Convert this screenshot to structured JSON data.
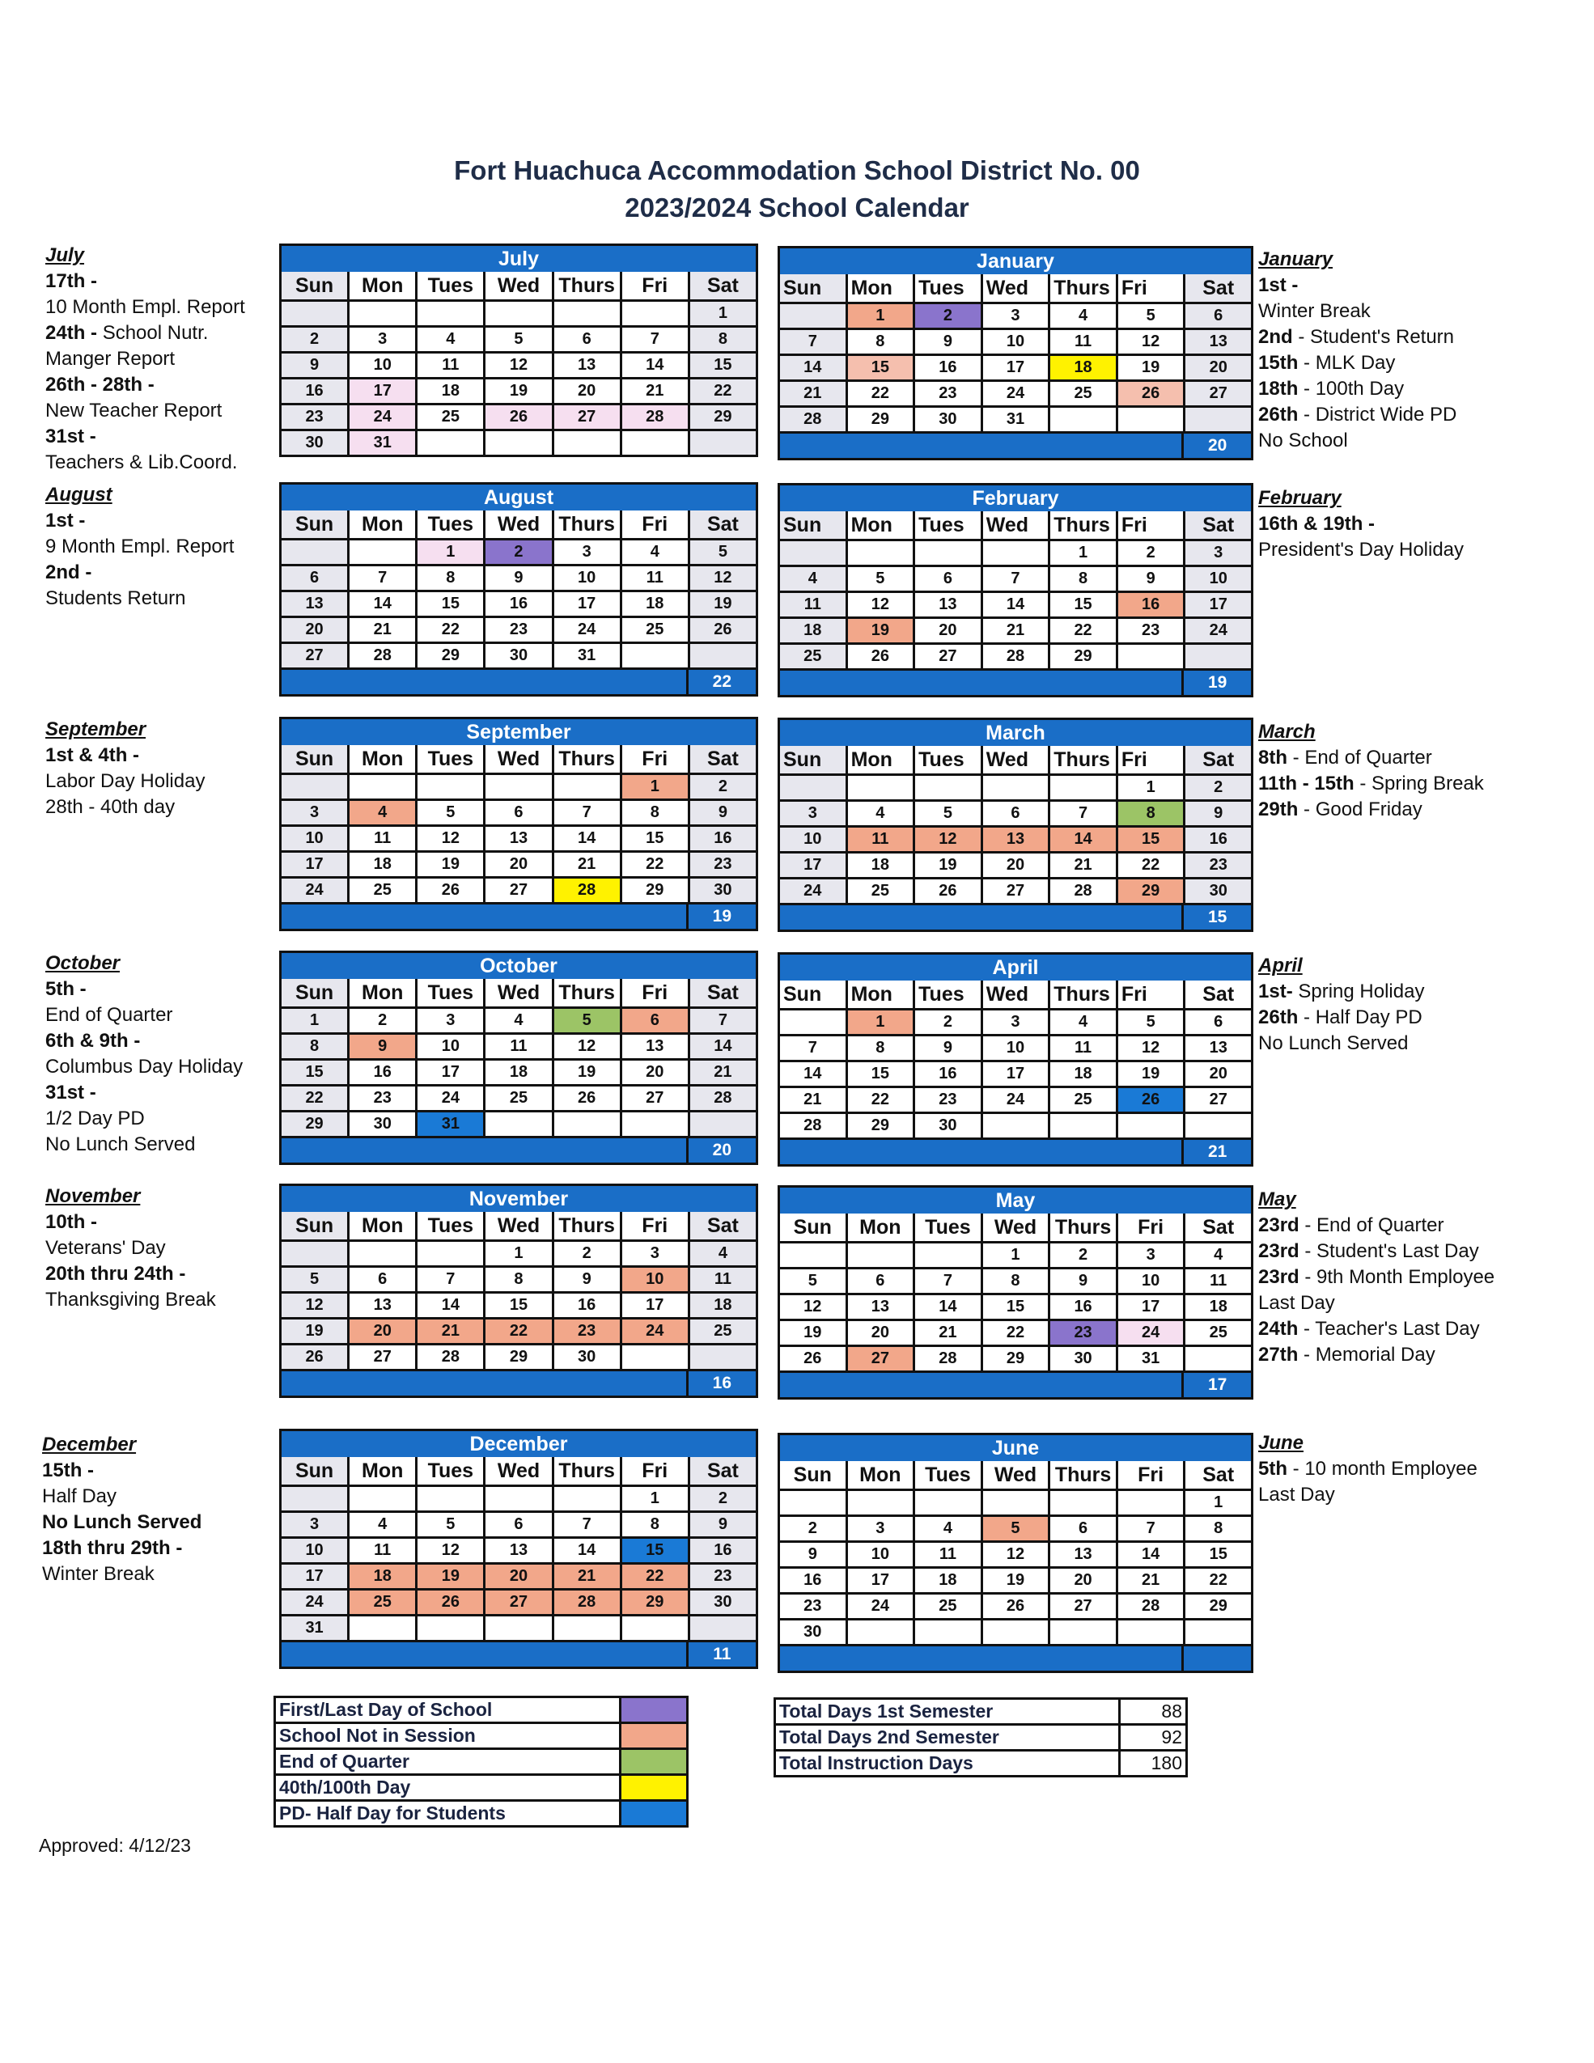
{
  "header": {
    "line1": "Fort Huachuca Accommodation School District No. 00",
    "line2": "2023/2024 School Calendar"
  },
  "weekdays": [
    "Sun",
    "Mon",
    "Tues",
    "Wed",
    "Thurs",
    "Fri",
    "Sat"
  ],
  "colors": {
    "first": "#8a74cc",
    "off": "#f2a78a",
    "light": "#f6dff0",
    "eoq": "#9cc466",
    "day": "#fff200",
    "pd": "#1a7ad6",
    "header_blue": "#1a6ec7",
    "weekend": "#e7e7ee"
  },
  "months": [
    {
      "name": "July",
      "first_weekday": 6,
      "days": 31,
      "weekend_shaded": true,
      "footer": null,
      "highlights": {
        "17": "light",
        "24": "light",
        "26": "light",
        "27": "light",
        "28": "light",
        "31": "light"
      }
    },
    {
      "name": "August",
      "first_weekday": 2,
      "days": 31,
      "weekend_shaded": true,
      "footer": "22",
      "highlights": {
        "1": "light",
        "2": "first"
      }
    },
    {
      "name": "September",
      "first_weekday": 5,
      "days": 30,
      "weekend_shaded": true,
      "footer": "19",
      "highlights": {
        "1": "off",
        "4": "off",
        "28": "day"
      }
    },
    {
      "name": "October",
      "first_weekday": 0,
      "days": 31,
      "weekend_shaded": true,
      "footer": "20",
      "highlights": {
        "5": "eoq",
        "6": "off",
        "9": "off",
        "31": "pd"
      }
    },
    {
      "name": "November",
      "first_weekday": 3,
      "days": 30,
      "weekend_shaded": true,
      "footer": "16",
      "highlights": {
        "10": "off",
        "20": "off",
        "21": "off",
        "22": "off",
        "23": "off",
        "24": "off"
      }
    },
    {
      "name": "December",
      "first_weekday": 5,
      "days": 31,
      "weekend_shaded": true,
      "footer": "11",
      "highlights": {
        "15": "pd",
        "18": "off",
        "19": "off",
        "20": "off",
        "21": "off",
        "22": "off",
        "25": "off",
        "26": "off",
        "27": "off",
        "28": "off",
        "29": "off"
      }
    },
    {
      "name": "January",
      "first_weekday": 1,
      "days": 31,
      "weekend_shaded": true,
      "footer": "20",
      "highlights": {
        "1": "off",
        "2": "first",
        "15": "offlt",
        "18": "day",
        "26": "offlt"
      }
    },
    {
      "name": "February",
      "first_weekday": 4,
      "days": 29,
      "weekend_shaded": true,
      "footer": "19",
      "highlights": {
        "16": "off",
        "19": "off"
      }
    },
    {
      "name": "March",
      "first_weekday": 5,
      "days": 30,
      "weekend_shaded": true,
      "footer": "15",
      "highlights": {
        "8": "eoq",
        "11": "off",
        "12": "off",
        "13": "off",
        "14": "off",
        "15": "off",
        "29": "off"
      }
    },
    {
      "name": "April",
      "first_weekday": 1,
      "days": 30,
      "weekend_shaded": false,
      "footer": "21",
      "highlights": {
        "1": "off",
        "26": "pd"
      }
    },
    {
      "name": "May",
      "first_weekday": 3,
      "days": 31,
      "weekend_shaded": false,
      "footer": "17",
      "highlights": {
        "23": "first",
        "24": "light",
        "27": "off"
      }
    },
    {
      "name": "June",
      "first_weekday": 6,
      "days": 30,
      "weekend_shaded": false,
      "footer": "",
      "highlights": {
        "5": "off"
      }
    }
  ],
  "notes": [
    {
      "heading": "July",
      "lines": [
        [
          "17th -",
          ""
        ],
        [
          "",
          "10 Month Empl.  Report"
        ],
        [
          "24th - ",
          "School  Nutr."
        ],
        [
          "",
          " Manger Report"
        ],
        [
          "26th - 28th -",
          ""
        ],
        [
          "",
          "New Teacher Report"
        ],
        [
          "31st -",
          ""
        ],
        [
          "",
          "Teachers & Lib.Coord."
        ]
      ]
    },
    {
      "heading": "August",
      "lines": [
        [
          "1st -",
          ""
        ],
        [
          "",
          "9 Month Empl. Report"
        ],
        [
          "2nd -",
          ""
        ],
        [
          "",
          "Students Return"
        ]
      ]
    },
    {
      "heading": "September",
      "lines": [
        [
          "1st & 4th -",
          ""
        ],
        [
          "",
          "Labor Day Holiday"
        ],
        [
          "",
          "28th - 40th day"
        ]
      ]
    },
    {
      "heading": "October",
      "lines": [
        [
          "5th -",
          ""
        ],
        [
          "",
          "End of Quarter"
        ],
        [
          "6th & 9th -",
          ""
        ],
        [
          "",
          "Columbus Day Holiday"
        ],
        [
          "31st -",
          ""
        ],
        [
          "",
          "1/2 Day PD"
        ],
        [
          "",
          "No Lunch Served"
        ]
      ]
    },
    {
      "heading": "November",
      "lines": [
        [
          "10th -",
          ""
        ],
        [
          "",
          "Veterans' Day"
        ],
        [
          "20th thru 24th -",
          ""
        ],
        [
          "",
          "Thanksgiving Break"
        ]
      ]
    },
    {
      "heading": "December",
      "lines": [
        [
          "15th -",
          ""
        ],
        [
          "",
          "Half Day"
        ],
        [
          "No Lunch Served",
          ""
        ],
        [
          "18th thru 29th -",
          ""
        ],
        [
          "",
          "Winter Break"
        ]
      ]
    },
    {
      "heading": "January",
      "lines": [
        [
          "1st -",
          ""
        ],
        [
          "",
          "Winter Break"
        ],
        [
          "2nd",
          " - Student's Return"
        ],
        [
          "15th",
          " - MLK Day"
        ],
        [
          "18th",
          " - 100th Day"
        ],
        [
          "26th",
          " - District Wide PD"
        ],
        [
          "",
          "No School"
        ]
      ]
    },
    {
      "heading": "February",
      "lines": [
        [
          "16th & 19th -",
          ""
        ],
        [
          "",
          "President's Day Holiday"
        ]
      ]
    },
    {
      "heading": "March",
      "lines": [
        [
          "8th",
          " - End of Quarter"
        ],
        [
          "11th - 15th",
          " - Spring Break"
        ],
        [
          "29th",
          " - Good Friday"
        ]
      ]
    },
    {
      "heading": "April",
      "lines": [
        [
          "1st-",
          " Spring Holiday"
        ],
        [
          "26th",
          " - Half Day PD"
        ],
        [
          "",
          "No Lunch Served"
        ]
      ]
    },
    {
      "heading": "May",
      "lines": [
        [
          "23rd",
          " - End of Quarter"
        ],
        [
          "23rd",
          " - Student's Last Day"
        ],
        [
          "23rd",
          " - 9th Month Employee"
        ],
        [
          "",
          "Last Day"
        ],
        [
          "24th",
          " - Teacher's Last Day"
        ],
        [
          "27th",
          " - Memorial Day"
        ]
      ]
    },
    {
      "heading": "June",
      "lines": [
        [
          "5th",
          " - 10 month Employee"
        ],
        [
          "",
          "Last Day"
        ]
      ]
    }
  ],
  "legend": [
    {
      "label": "First/Last Day of School",
      "color": "#8a74cc"
    },
    {
      "label": "School Not in Session",
      "color": "#f2a78a"
    },
    {
      "label": "End of Quarter",
      "color": "#9cc466"
    },
    {
      "label": "40th/100th Day",
      "color": "#fff200"
    },
    {
      "label": "PD- Half Day for Students",
      "color": "#1a7ad6"
    }
  ],
  "totals": [
    {
      "label": "Total Days 1st Semester",
      "value": "88"
    },
    {
      "label": "Total Days 2nd Semester",
      "value": "92"
    },
    {
      "label": "Total Instruction Days",
      "value": "180"
    }
  ],
  "approved": "Approved: 4/12/23"
}
